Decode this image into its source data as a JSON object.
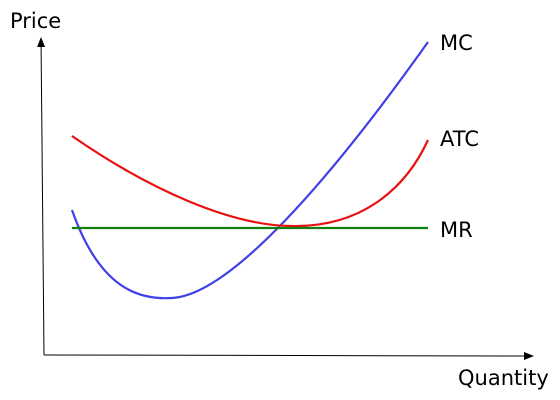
{
  "axes": {
    "y_label": "Price",
    "x_label": "Quantity"
  },
  "curves": [
    {
      "label": "MC"
    },
    {
      "label": "ATC"
    },
    {
      "label": "MR"
    }
  ]
}
